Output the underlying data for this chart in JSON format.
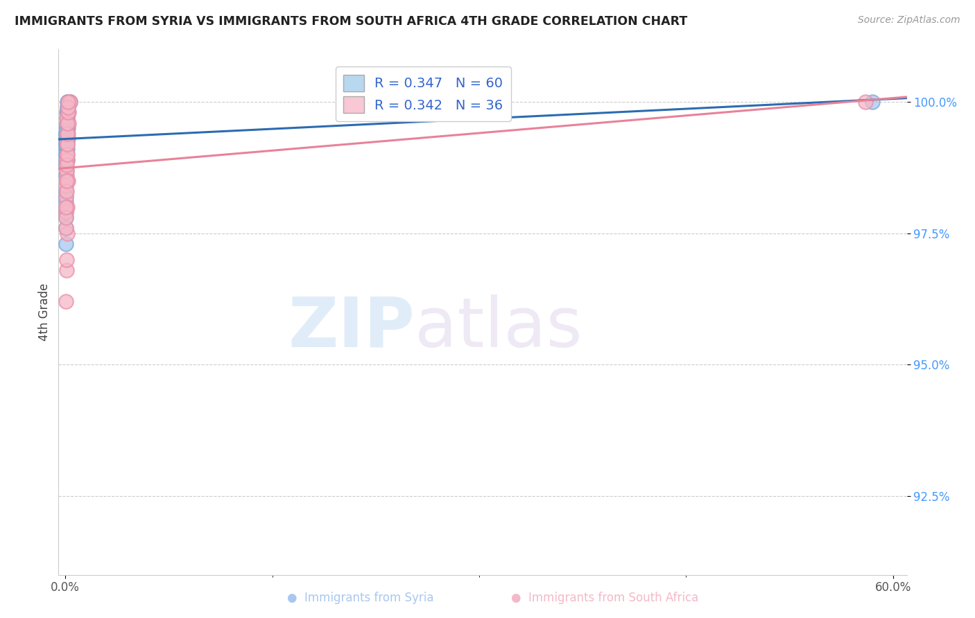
{
  "title": "IMMIGRANTS FROM SYRIA VS IMMIGRANTS FROM SOUTH AFRICA 4TH GRADE CORRELATION CHART",
  "source": "Source: ZipAtlas.com",
  "ylabel": "4th Grade",
  "ytick_values": [
    92.5,
    95.0,
    97.5,
    100.0
  ],
  "xmin": -0.5,
  "xmax": 61.0,
  "ymin": 91.0,
  "ymax": 101.0,
  "syria_face_color": "#A8C8F0",
  "syria_edge_color": "#7AAAD8",
  "sa_face_color": "#F5B8C8",
  "sa_edge_color": "#E890A8",
  "syria_line_color": "#2B6CB0",
  "sa_line_color": "#E8829A",
  "legend_syria_label": "R = 0.347   N = 60",
  "legend_sa_label": "R = 0.342   N = 36",
  "legend_syria_color": "#B8D8F0",
  "legend_sa_color": "#F8C8D4",
  "syria_x": [
    0.08,
    0.12,
    0.18,
    0.05,
    0.22,
    0.03,
    0.04,
    0.06,
    0.09,
    0.15,
    0.25,
    0.2,
    0.03,
    0.04,
    0.05,
    0.06,
    0.07,
    0.08,
    0.09,
    0.1,
    0.11,
    0.13,
    0.14,
    0.16,
    0.17,
    0.19,
    0.3,
    0.07,
    0.05,
    0.04,
    0.03,
    0.02,
    0.01,
    0.03,
    0.05,
    0.06,
    0.08,
    0.1,
    0.12,
    0.15,
    0.18,
    0.2,
    0.03,
    0.04,
    0.05,
    0.07,
    0.08,
    0.1,
    0.12,
    0.13,
    0.15,
    0.17,
    0.18,
    0.2,
    0.22,
    0.25,
    0.28,
    0.3,
    0.35,
    58.5
  ],
  "syria_y": [
    99.8,
    99.6,
    100.0,
    99.4,
    100.0,
    99.2,
    99.1,
    99.3,
    99.5,
    99.7,
    100.0,
    99.8,
    98.8,
    98.6,
    98.9,
    99.0,
    99.1,
    99.2,
    99.3,
    99.5,
    99.6,
    99.7,
    99.8,
    99.9,
    100.0,
    100.0,
    100.0,
    98.5,
    98.2,
    98.0,
    97.8,
    97.6,
    97.3,
    97.9,
    98.1,
    98.3,
    98.5,
    98.7,
    98.9,
    99.1,
    99.3,
    99.5,
    99.0,
    99.2,
    99.4,
    99.5,
    99.6,
    99.7,
    99.8,
    99.9,
    100.0,
    100.0,
    100.0,
    100.0,
    100.0,
    100.0,
    100.0,
    100.0,
    100.0,
    100.0
  ],
  "sa_x": [
    0.1,
    0.18,
    0.07,
    0.14,
    0.04,
    0.06,
    0.09,
    0.22,
    0.13,
    0.16,
    0.25,
    0.04,
    0.1,
    0.28,
    0.2,
    0.32,
    0.08,
    0.05,
    0.09,
    0.12,
    0.15,
    0.2,
    0.03,
    0.04,
    0.06,
    0.07,
    0.09,
    0.1,
    0.12,
    0.13,
    0.15,
    0.16,
    0.18,
    0.19,
    0.2,
    58.0
  ],
  "sa_y": [
    99.7,
    99.9,
    98.6,
    99.0,
    97.9,
    98.2,
    98.7,
    99.6,
    98.9,
    99.2,
    99.8,
    98.4,
    98.9,
    100.0,
    99.4,
    100.0,
    96.8,
    96.2,
    97.0,
    97.5,
    98.0,
    98.5,
    97.6,
    97.8,
    98.0,
    98.3,
    98.5,
    98.8,
    99.0,
    99.2,
    99.4,
    99.6,
    99.8,
    99.9,
    100.0,
    100.0
  ]
}
